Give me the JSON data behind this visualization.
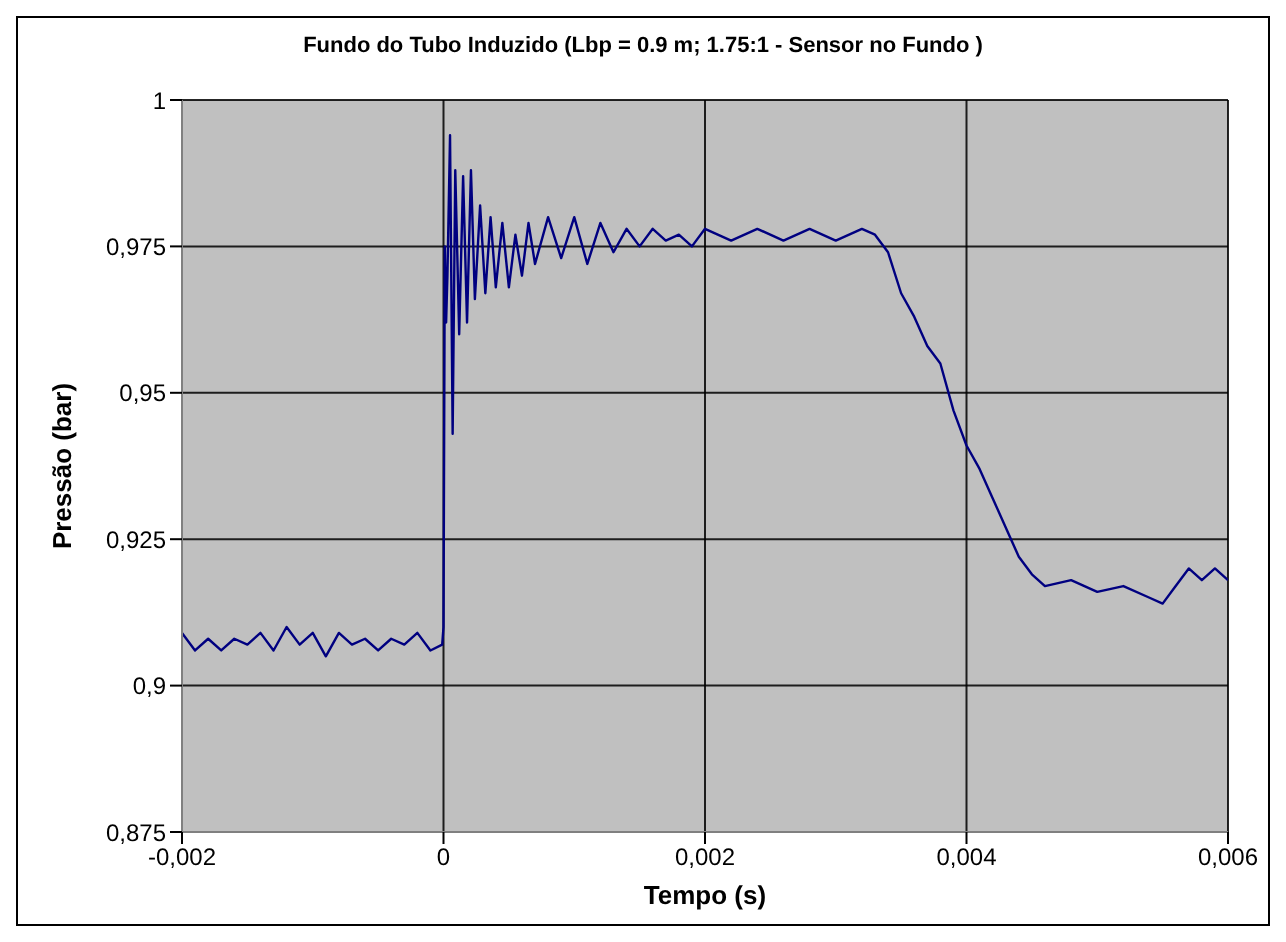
{
  "chart_data": {
    "type": "line",
    "title": "Fundo do Tubo Induzido (Lbp = 0.9 m; 1.75:1 - Sensor no Fundo )",
    "xlabel": "Tempo (s)",
    "ylabel": "Pressão (bar)",
    "xlim": [
      -0.002,
      0.006
    ],
    "xticks": [
      {
        "value": -0.002,
        "label": "-0,002"
      },
      {
        "value": 0,
        "label": "0"
      },
      {
        "value": 0.002,
        "label": "0,002"
      },
      {
        "value": 0.004,
        "label": "0,004"
      },
      {
        "value": 0.006,
        "label": "0,006"
      }
    ],
    "ylim": [
      0.875,
      1
    ],
    "yticks": [
      {
        "value": 0.875,
        "label": "0,875"
      },
      {
        "value": 0.9,
        "label": "0,9"
      },
      {
        "value": 0.925,
        "label": "0,925"
      },
      {
        "value": 0.95,
        "label": "0,95"
      },
      {
        "value": 0.975,
        "label": "0,975"
      },
      {
        "value": 1,
        "label": "1"
      }
    ],
    "grid": true,
    "legend": false,
    "marker": "none",
    "line_style": "solid",
    "x": [
      -0.002,
      -0.0019,
      -0.0018,
      -0.0017,
      -0.0016,
      -0.0015,
      -0.0014,
      -0.0013,
      -0.0012,
      -0.0011,
      -0.001,
      -0.0009,
      -0.0008,
      -0.0007,
      -0.0006,
      -0.0005,
      -0.0004,
      -0.0003,
      -0.0002,
      -0.0001,
      -1e-05,
      0,
      1e-05,
      2e-05,
      3e-05,
      5e-05,
      7e-05,
      9e-05,
      0.00012,
      0.00015,
      0.00018,
      0.00021,
      0.00024,
      0.00028,
      0.00032,
      0.00036,
      0.0004,
      0.00045,
      0.0005,
      0.00055,
      0.0006,
      0.00065,
      0.0007,
      0.0008,
      0.0009,
      0.001,
      0.0011,
      0.0012,
      0.0013,
      0.0014,
      0.0015,
      0.0016,
      0.0017,
      0.0018,
      0.0019,
      0.002,
      0.0022,
      0.0024,
      0.0026,
      0.0028,
      0.003,
      0.0032,
      0.0033,
      0.0034,
      0.0035,
      0.0036,
      0.0037,
      0.0038,
      0.0039,
      0.004,
      0.0041,
      0.0042,
      0.0043,
      0.0044,
      0.0045,
      0.0046,
      0.0048,
      0.005,
      0.0052,
      0.0054,
      0.0055,
      0.0056,
      0.0057,
      0.0058,
      0.0059,
      0.006
    ],
    "series": [
      {
        "color": "#000080",
        "values": [
          0.909,
          0.906,
          0.908,
          0.906,
          0.908,
          0.907,
          0.909,
          0.906,
          0.91,
          0.907,
          0.909,
          0.905,
          0.909,
          0.907,
          0.908,
          0.906,
          0.908,
          0.907,
          0.909,
          0.906,
          0.907,
          0.91,
          0.975,
          0.962,
          0.97,
          0.994,
          0.943,
          0.988,
          0.96,
          0.987,
          0.962,
          0.988,
          0.966,
          0.982,
          0.967,
          0.98,
          0.968,
          0.979,
          0.968,
          0.977,
          0.97,
          0.979,
          0.972,
          0.98,
          0.973,
          0.98,
          0.972,
          0.979,
          0.974,
          0.978,
          0.975,
          0.978,
          0.976,
          0.977,
          0.975,
          0.978,
          0.976,
          0.978,
          0.976,
          0.978,
          0.976,
          0.978,
          0.977,
          0.974,
          0.967,
          0.963,
          0.958,
          0.955,
          0.947,
          0.941,
          0.937,
          0.932,
          0.927,
          0.922,
          0.919,
          0.917,
          0.918,
          0.916,
          0.917,
          0.915,
          0.914,
          0.917,
          0.92,
          0.918,
          0.92,
          0.918
        ]
      }
    ]
  }
}
